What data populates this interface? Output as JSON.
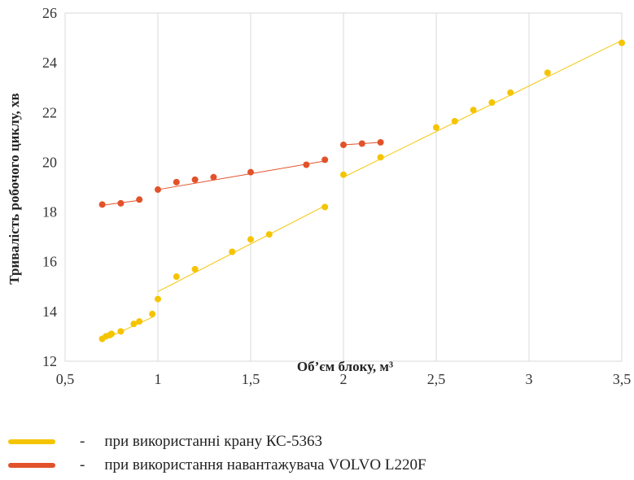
{
  "colors": {
    "series_1": "#F5C400",
    "series_2": "#E2522A",
    "grid": "#D9D9D9"
  },
  "legend": [
    {
      "dash": "-",
      "label": "при використанні крану КС-5363"
    },
    {
      "dash": "-",
      "label": "при використання навантажувача VOLVO L220F"
    }
  ],
  "chart_data": {
    "type": "scatter",
    "title": "",
    "xlabel": "Об’єм блоку, м³",
    "ylabel": "Тривалість робочого циклу, хв",
    "xlim": [
      0.5,
      3.5
    ],
    "ylim": [
      12,
      26
    ],
    "x_ticks": [
      0.5,
      1,
      1.5,
      2,
      2.5,
      3,
      3.5
    ],
    "x_tick_labels": [
      "0,5",
      "1",
      "1,5",
      "2",
      "2,5",
      "3",
      "3,5"
    ],
    "y_ticks": [
      12,
      14,
      16,
      18,
      20,
      22,
      24,
      26
    ],
    "y_tick_labels": [
      "12",
      "14",
      "16",
      "18",
      "20",
      "22",
      "24",
      "26"
    ],
    "grid": "vertical",
    "legend_position": "bottom",
    "series": [
      {
        "color_key": "series_1",
        "points": [
          [
            0.7,
            12.9
          ],
          [
            0.72,
            13.0
          ],
          [
            0.74,
            13.05
          ],
          [
            0.75,
            13.1
          ],
          [
            0.8,
            13.2
          ],
          [
            0.87,
            13.5
          ],
          [
            0.9,
            13.6
          ],
          [
            0.97,
            13.9
          ],
          [
            1.0,
            14.5
          ],
          [
            1.1,
            15.4
          ],
          [
            1.2,
            15.7
          ],
          [
            1.4,
            16.4
          ],
          [
            1.5,
            16.9
          ],
          [
            1.6,
            17.1
          ],
          [
            1.9,
            18.2
          ],
          [
            2.0,
            19.5
          ],
          [
            2.2,
            20.2
          ],
          [
            2.5,
            21.4
          ],
          [
            2.6,
            21.65
          ],
          [
            2.7,
            22.1
          ],
          [
            2.8,
            22.4
          ],
          [
            2.9,
            22.8
          ],
          [
            3.1,
            23.6
          ],
          [
            3.5,
            24.8
          ]
        ],
        "trendlines": [
          {
            "x": [
              0.7,
              0.98
            ],
            "y": [
              12.85,
              13.8
            ]
          },
          {
            "x": [
              1.0,
              1.9
            ],
            "y": [
              14.8,
              18.25
            ]
          },
          {
            "x": [
              2.0,
              3.5
            ],
            "y": [
              19.4,
              24.9
            ]
          }
        ]
      },
      {
        "color_key": "series_2",
        "points": [
          [
            0.7,
            18.3
          ],
          [
            0.8,
            18.35
          ],
          [
            0.9,
            18.5
          ],
          [
            1.0,
            18.9
          ],
          [
            1.1,
            19.2
          ],
          [
            1.2,
            19.3
          ],
          [
            1.3,
            19.4
          ],
          [
            1.5,
            19.6
          ],
          [
            1.8,
            19.9
          ],
          [
            1.9,
            20.1
          ],
          [
            2.0,
            20.7
          ],
          [
            2.1,
            20.75
          ],
          [
            2.2,
            20.8
          ]
        ],
        "trendlines": [
          {
            "x": [
              0.7,
              0.9
            ],
            "y": [
              18.27,
              18.47
            ]
          },
          {
            "x": [
              1.0,
              1.9
            ],
            "y": [
              18.9,
              20.05
            ]
          },
          {
            "x": [
              2.0,
              2.2
            ],
            "y": [
              20.7,
              20.8
            ]
          }
        ]
      }
    ]
  }
}
